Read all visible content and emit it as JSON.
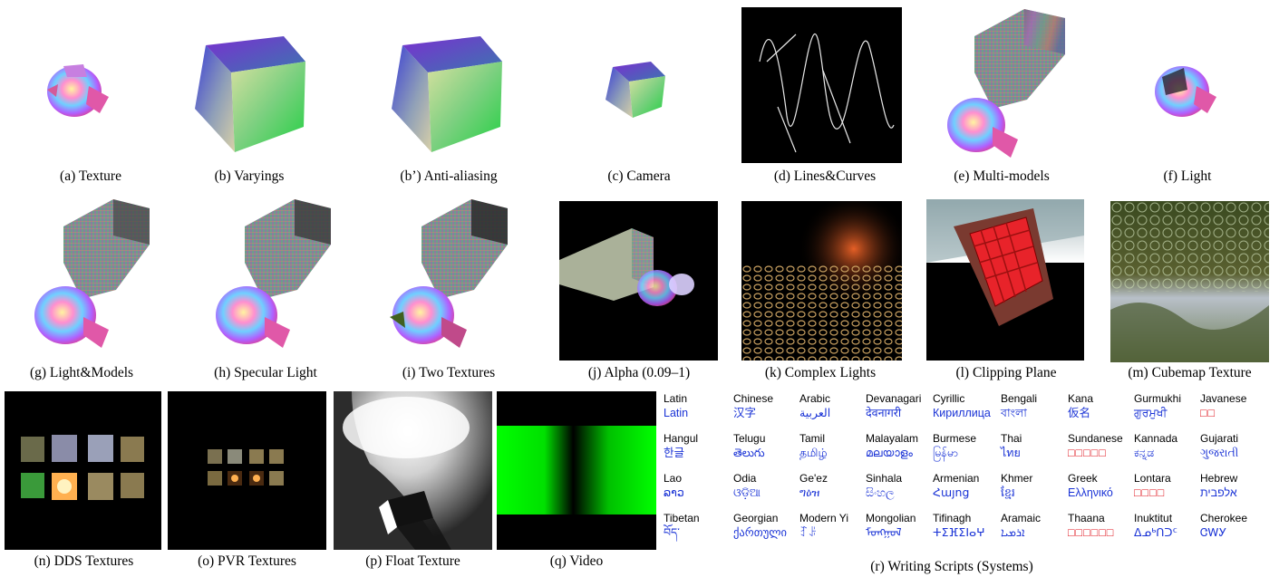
{
  "captions": {
    "a": "(a) Texture",
    "b": "(b) Varyings",
    "b2": "(b’) Anti-aliasing",
    "c": "(c) Camera",
    "d": "(d) Lines&Curves",
    "e": "(e) Multi-models",
    "f": "(f) Light",
    "g": "(g) Light&Models",
    "h": "(h) Specular Light",
    "i": "(i) Two Textures",
    "j": "(j) Alpha (0.09–1)",
    "k": "(k) Complex Lights",
    "l": "(l) Clipping Plane",
    "m": "(m) Cubemap Texture",
    "n": "(n) DDS Textures",
    "o": "(o) PVR Textures",
    "p": "(p) Float Texture",
    "q": "(q) Video",
    "r": "(r) Writing Scripts (Systems)"
  },
  "scripts": [
    {
      "name": "Latin",
      "native": "Latin"
    },
    {
      "name": "Chinese",
      "native": "汉字"
    },
    {
      "name": "Arabic",
      "native": "العربية"
    },
    {
      "name": "Devanagari",
      "native": "देवनागरी"
    },
    {
      "name": "Cyrillic",
      "native": "Кириллица"
    },
    {
      "name": "Bengali",
      "native": "বাংলা"
    },
    {
      "name": "Kana",
      "native": "仮名"
    },
    {
      "name": "Gurmukhi",
      "native": "ਗੁਰਮੁਖੀ"
    },
    {
      "name": "Javanese",
      "native": "□□",
      "missing": true
    },
    {
      "name": "Hangul",
      "native": "한글"
    },
    {
      "name": "Telugu",
      "native": "తెలుగు"
    },
    {
      "name": "Tamil",
      "native": "தமிழ்"
    },
    {
      "name": "Malayalam",
      "native": "മലയാളം"
    },
    {
      "name": "Burmese",
      "native": "မြန်မာ"
    },
    {
      "name": "Thai",
      "native": "ไทย"
    },
    {
      "name": "Sundanese",
      "native": "□□□□□",
      "missing": true
    },
    {
      "name": "Kannada",
      "native": "ಕನ್ನಡ"
    },
    {
      "name": "Gujarati",
      "native": "ગુજરાતી"
    },
    {
      "name": "Lao",
      "native": "ລາວ"
    },
    {
      "name": "Odia",
      "native": "ଓଡ଼ିଆ"
    },
    {
      "name": "Ge'ez",
      "native": "ግዕዝ"
    },
    {
      "name": "Sinhala",
      "native": "සිංහල"
    },
    {
      "name": "Armenian",
      "native": "Հայոց"
    },
    {
      "name": "Khmer",
      "native": "ខ្មែរ"
    },
    {
      "name": "Greek",
      "native": "Ελληνικό"
    },
    {
      "name": "Lontara",
      "native": "□□□□",
      "missing": true
    },
    {
      "name": "Hebrew",
      "native": "אלפבית"
    },
    {
      "name": "Tibetan",
      "native": "བོད་"
    },
    {
      "name": "Georgian",
      "native": "ქართული"
    },
    {
      "name": "Modern Yi",
      "native": "ꆈꌠ"
    },
    {
      "name": "Mongolian",
      "native": "ᠮᠣᠩᠭᠣᠯ"
    },
    {
      "name": "Tifinagh",
      "native": "ⵜⵉⴼⵉⵏⴰⵖ"
    },
    {
      "name": "Aramaic",
      "native": "ܐܪܡܝܐ"
    },
    {
      "name": "Thaana",
      "native": "□□□□□□",
      "missing": true
    },
    {
      "name": "Inuktitut",
      "native": "ᐃᓄᒃᑎᑐᑦ"
    },
    {
      "name": "Cherokee",
      "native": "ᏣᎳᎩ"
    }
  ]
}
